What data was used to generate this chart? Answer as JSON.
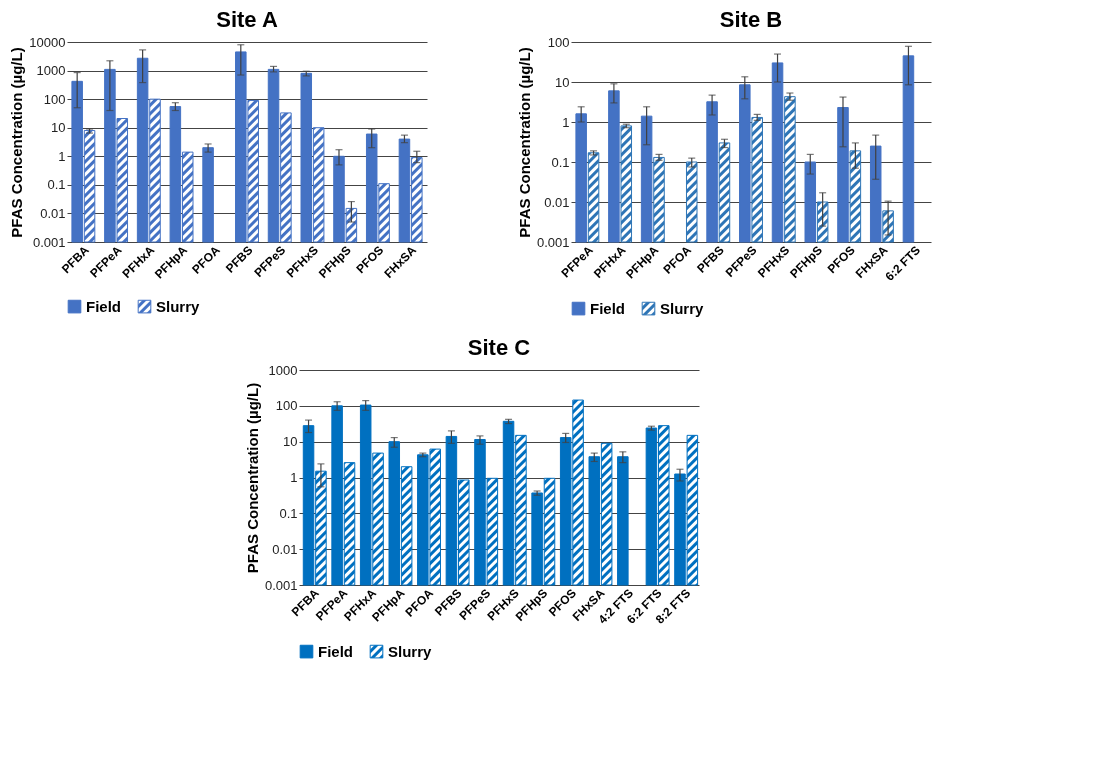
{
  "chart_data": [
    {
      "type": "bar",
      "title": "Site A",
      "ylabel": "PFAS Concentration (µg/L)",
      "categories": [
        "PFBA",
        "PFPeA",
        "PFHxA",
        "PFHpA",
        "PFOA",
        "PFBS",
        "PFPeS",
        "PFHxS",
        "PFHpS",
        "PFOS",
        "FHxSA"
      ],
      "series": [
        {
          "name": "Field",
          "color": "#4472c4",
          "values": [
            420,
            1100,
            2700,
            55,
            2,
            4500,
            1100,
            800,
            1,
            6,
            4
          ],
          "errors": [
            [
              50,
              850
            ],
            [
              40,
              2200
            ],
            [
              380,
              5300
            ],
            [
              40,
              75
            ],
            [
              1.4,
              2.7
            ],
            [
              700,
              8000
            ],
            [
              900,
              1400
            ],
            [
              650,
              950
            ],
            [
              0.5,
              1.7
            ],
            [
              2,
              9
            ],
            [
              3,
              5.5
            ]
          ]
        },
        {
          "name": "Slurry",
          "color": "#4472c4",
          "values": [
            8,
            21,
            100,
            1.4,
            null,
            90,
            33,
            10,
            0.015,
            0.11,
            0.9
          ],
          "errors": [
            [
              6.5,
              9
            ],
            null,
            null,
            null,
            null,
            null,
            null,
            null,
            [
              0.005,
              0.026
            ],
            null,
            [
              0.6,
              1.5
            ]
          ]
        }
      ],
      "ylim": [
        0.001,
        10000
      ],
      "yticks": [
        0.001,
        0.01,
        0.1,
        1,
        10,
        100,
        1000,
        10000
      ],
      "log": true,
      "grid": "y",
      "legend": "bottom"
    },
    {
      "type": "bar",
      "title": "Site B",
      "ylabel": "PFAS Concentration (µg/L)",
      "categories": [
        "PFPeA",
        "PFHxA",
        "PFHpA",
        "PFOA",
        "PFBS",
        "PFPeS",
        "PFHxS",
        "PFHpS",
        "PFOS",
        "FHxSA",
        "6:2 FTS"
      ],
      "series": [
        {
          "name": "Field",
          "color": "#4472c4",
          "values": [
            1.6,
            6,
            1.4,
            null,
            3.2,
            8.5,
            30,
            0.1,
            2.3,
            0.25,
            45
          ],
          "errors": [
            [
              1,
              2.4
            ],
            [
              3,
              9
            ],
            [
              0.27,
              2.4
            ],
            null,
            [
              1.5,
              4.7
            ],
            [
              3.8,
              13.5
            ],
            [
              10,
              50
            ],
            [
              0.05,
              0.155
            ],
            [
              0.24,
              4.2
            ],
            [
              0.037,
              0.47
            ],
            [
              8.5,
              78
            ]
          ]
        },
        {
          "name": "Slurry",
          "color": "#2e75b6",
          "values": [
            0.17,
            0.8,
            0.13,
            0.1,
            0.3,
            1.3,
            4.3,
            0.01,
            0.19,
            0.006,
            null
          ],
          "errors": [
            [
              0.15,
              0.19
            ],
            [
              0.72,
              0.88
            ],
            [
              0.11,
              0.155
            ],
            [
              0.075,
              0.125
            ],
            [
              0.23,
              0.37
            ],
            [
              1.1,
              1.55
            ],
            [
              3.5,
              5.3
            ],
            [
              0.0025,
              0.017
            ],
            [
              0.07,
              0.3
            ],
            [
              0.0015,
              0.0105
            ],
            null
          ]
        }
      ],
      "ylim": [
        0.001,
        100
      ],
      "yticks": [
        0.001,
        0.01,
        0.1,
        1,
        10,
        100
      ],
      "log": true,
      "grid": "y",
      "legend": "bottom"
    },
    {
      "type": "bar",
      "title": "Site C",
      "ylabel": "PFAS Concentration (µg/L)",
      "categories": [
        "PFBA",
        "PFPeA",
        "PFHxA",
        "PFHpA",
        "PFOA",
        "PFBS",
        "PFPeS",
        "PFHxS",
        "PFHpS",
        "PFOS",
        "FHxSA",
        "4:2 FTS",
        "6:2 FTS",
        "8:2 FTS"
      ],
      "series": [
        {
          "name": "Field",
          "color": "#0070c0",
          "values": [
            28,
            100,
            105,
            10,
            4.3,
            14,
            11.5,
            37,
            0.37,
            13,
            3.8,
            3.8,
            24,
            1.25
          ],
          "errors": [
            [
              18,
              40
            ],
            [
              75,
              130
            ],
            [
              75,
              140
            ],
            [
              7,
              13
            ],
            [
              3.8,
              4.8
            ],
            [
              9,
              20
            ],
            [
              8.5,
              14.5
            ],
            [
              32,
              42
            ],
            [
              0.32,
              0.42
            ],
            [
              9.5,
              17
            ],
            [
              2.8,
              4.8
            ],
            [
              2.6,
              5.2
            ],
            [
              21,
              27
            ],
            [
              0.8,
              1.7
            ]
          ]
        },
        {
          "name": "Slurry",
          "color": "#0070c0",
          "values": [
            1.5,
            2.6,
            4.8,
            2,
            6.2,
            0.85,
            0.95,
            15,
            0.95,
            145,
            9,
            null,
            28,
            15
          ],
          "errors": [
            [
              0.55,
              2.4
            ],
            null,
            null,
            null,
            null,
            null,
            null,
            null,
            null,
            null,
            null,
            null,
            null,
            null
          ]
        }
      ],
      "ylim": [
        0.001,
        1000
      ],
      "yticks": [
        0.001,
        0.01,
        0.1,
        1,
        10,
        100,
        1000
      ],
      "log": true,
      "grid": "y",
      "legend": "bottom"
    }
  ]
}
